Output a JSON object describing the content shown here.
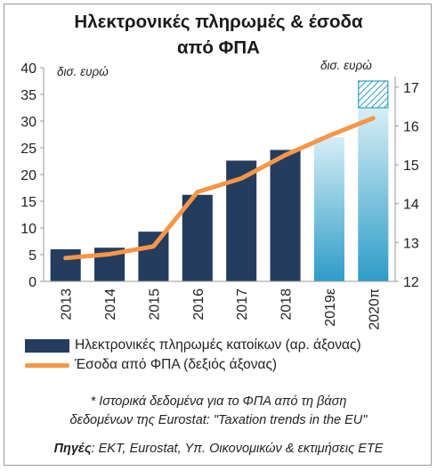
{
  "title_line1": "Ηλεκτρονικές πληρωμές & έσοδα",
  "title_line2": "από ΦΠΑ",
  "unit_left": "δισ. ευρώ",
  "unit_right": "δισ. ευρώ",
  "legend": {
    "bars": "Ηλεκτρονικές πληρωμές κατοίκων (αρ. άξονας)",
    "line": "Έσοδα από ΦΠΑ (δεξιός άξονας)"
  },
  "footnote_line1": "* Ιστορικά δεδομένα για το ΦΠΑ από τη βάση",
  "footnote_line2": "δεδομένων της Eurostat: \"Taxation trends in the EU\"",
  "sources_label": "Πηγές",
  "sources_text": ": ΕΚΤ, Eurostat, Υπ. Οικονομικών & εκτιμήσεις ΕΤΕ",
  "chart_data": {
    "type": "bar",
    "categories": [
      "2013",
      "2014",
      "2015",
      "2016",
      "2017",
      "2018",
      "2019ε",
      "2020π"
    ],
    "series": [
      {
        "name": "Ηλεκτρονικές πληρωμές κατοίκων (αρ. άξονας)",
        "axis": "left",
        "type": "bar",
        "values": [
          6.0,
          6.3,
          9.3,
          16.2,
          22.6,
          24.6,
          27.0,
          32.5
        ],
        "estimate_from_index": 6,
        "stacked_top_2020": 5.0
      },
      {
        "name": "Έσοδα από ΦΠΑ (δεξιός άξονας)",
        "axis": "right",
        "type": "line",
        "values": [
          12.6,
          12.7,
          12.9,
          14.3,
          14.65,
          15.25,
          15.75,
          16.2
        ]
      }
    ],
    "yleft": {
      "lim": [
        0,
        40
      ],
      "ticks": [
        0,
        5,
        10,
        15,
        20,
        25,
        30,
        35,
        40
      ]
    },
    "yright": {
      "lim": [
        12,
        17.5
      ],
      "ticks": [
        12,
        13,
        14,
        15,
        16,
        17
      ]
    },
    "colors": {
      "bar": "#243c5e",
      "estimate_bar_top": "#d6eef6",
      "estimate_bar_bottom": "#2e9cc7",
      "hatch": "#2e9cc7",
      "line": "#f79646",
      "axis": "#9a9a9a"
    },
    "grid": false,
    "legend_position": "bottom"
  }
}
